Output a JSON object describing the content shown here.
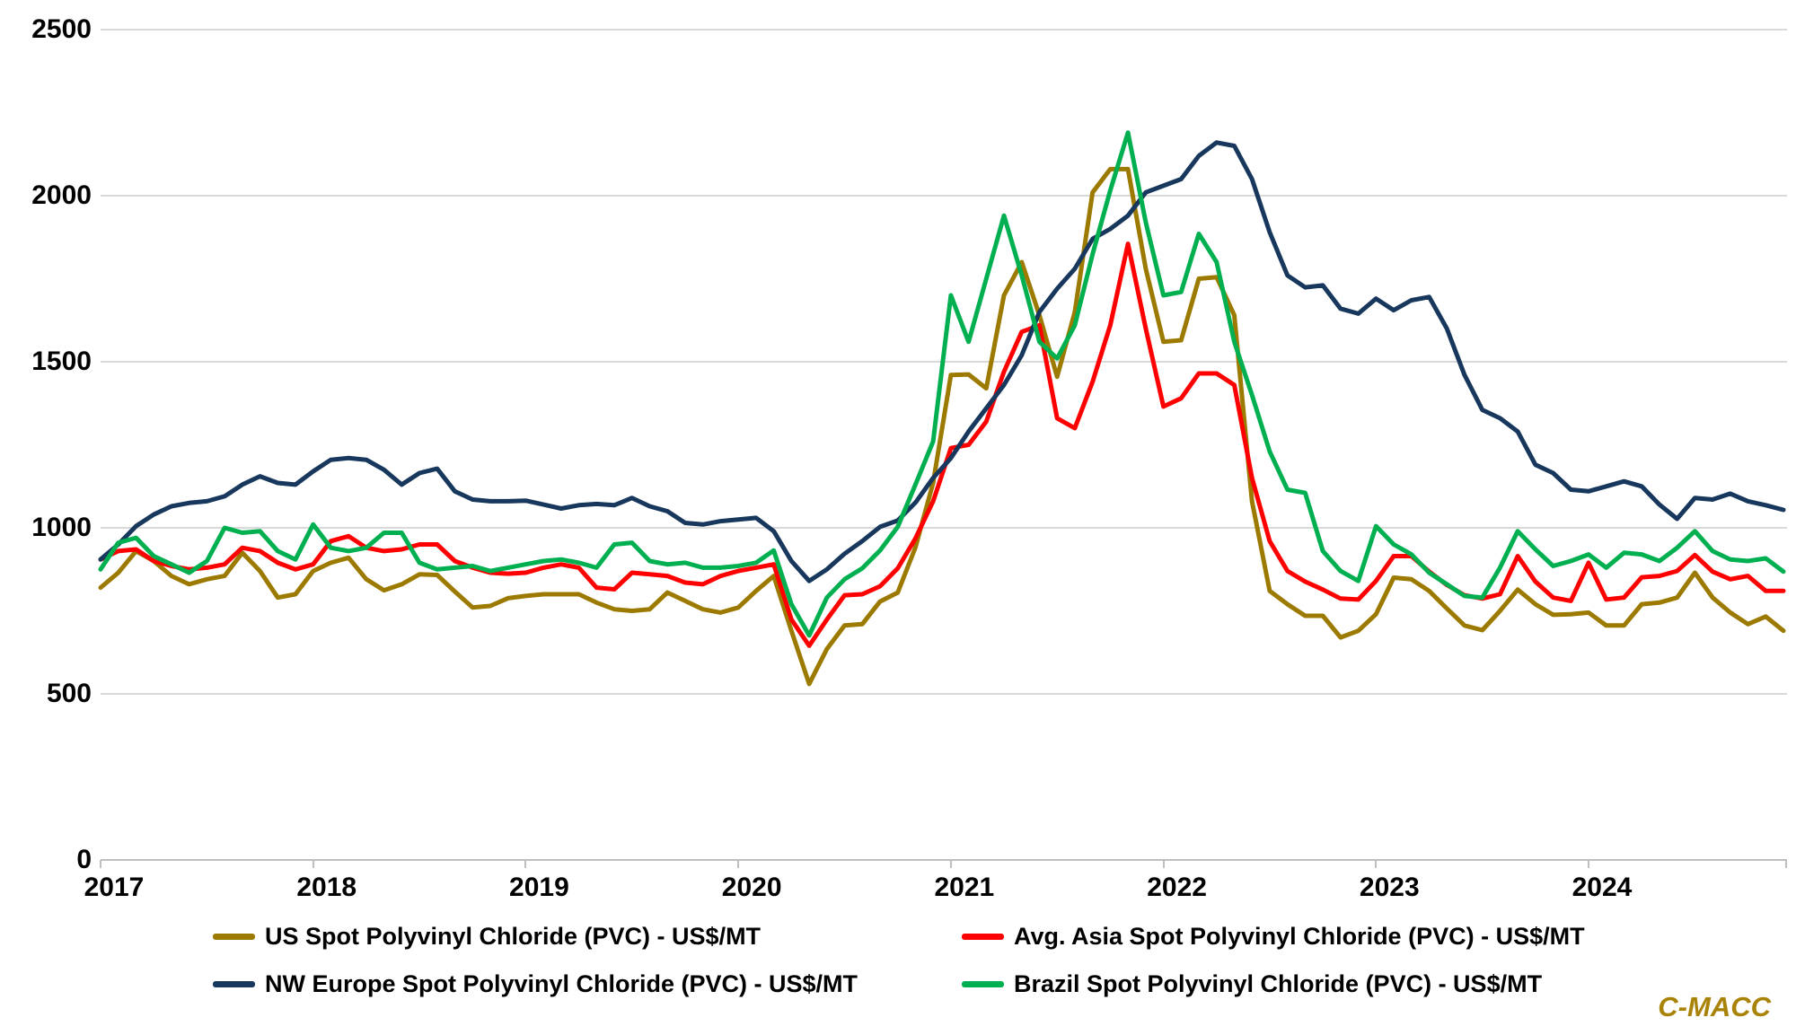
{
  "watermark": "C-MACC",
  "colors": {
    "grid": "#d9d9d9",
    "axis_line": "#bfbfbf",
    "label_text": "#000000",
    "watermark": "#a98307"
  },
  "chart_data": {
    "type": "line",
    "title": "",
    "grid": "horizontal",
    "legend_position": "bottom",
    "x_axis": {
      "labels": [
        "2017",
        "2018",
        "2019",
        "2020",
        "2021",
        "2022",
        "2023",
        "2024"
      ],
      "note": "monthly points Jan 2017 - Dec 2024"
    },
    "y_axis": {
      "ticks": [
        "0",
        "500",
        "1000",
        "1500",
        "2000",
        "2500"
      ],
      "tick_values": [
        0,
        500,
        1000,
        1500,
        2000,
        2500
      ],
      "min": 0,
      "max": 2500,
      "unit": "US$/MT"
    },
    "series": [
      {
        "name": "US Spot Polyvinyl Chloride (PVC) - US$/MT",
        "color": "#9C7A00",
        "values": [
          820,
          865,
          930,
          900,
          855,
          830,
          845,
          855,
          925,
          870,
          790,
          800,
          870,
          895,
          910,
          845,
          812,
          830,
          860,
          858,
          808,
          760,
          765,
          788,
          795,
          800,
          800,
          800,
          775,
          755,
          750,
          755,
          805,
          780,
          755,
          745,
          760,
          810,
          855,
          690,
          530,
          635,
          706,
          710,
          778,
          805,
          941,
          1135,
          1460,
          1462,
          1420,
          1700,
          1800,
          1640,
          1455,
          1650,
          2010,
          2080,
          2080,
          1780,
          1560,
          1565,
          1750,
          1755,
          1640,
          1080,
          810,
          770,
          735,
          735,
          670,
          690,
          740,
          850,
          845,
          810,
          757,
          706,
          692,
          750,
          814,
          770,
          738,
          740,
          745,
          706,
          706,
          770,
          775,
          790,
          865,
          790,
          745,
          710,
          733,
          690
        ]
      },
      {
        "name": "Avg. Asia Spot Polyvinyl Chloride (PVC) - US$/MT",
        "color": "#FF0000",
        "values": [
          905,
          930,
          935,
          900,
          885,
          875,
          880,
          890,
          940,
          930,
          895,
          875,
          890,
          960,
          975,
          940,
          930,
          935,
          950,
          950,
          900,
          880,
          865,
          862,
          865,
          880,
          890,
          880,
          820,
          815,
          865,
          860,
          855,
          835,
          830,
          855,
          870,
          880,
          890,
          724,
          645,
          724,
          797,
          800,
          824,
          878,
          968,
          1080,
          1240,
          1250,
          1320,
          1470,
          1590,
          1610,
          1330,
          1300,
          1440,
          1610,
          1855,
          1600,
          1365,
          1390,
          1465,
          1465,
          1430,
          1150,
          960,
          870,
          838,
          814,
          787,
          784,
          840,
          915,
          915,
          868,
          828,
          797,
          787,
          800,
          915,
          838,
          790,
          780,
          895,
          784,
          790,
          851,
          855,
          870,
          918,
          868,
          845,
          855,
          810,
          810
        ]
      },
      {
        "name": "NW Europe Spot Polyvinyl Chloride (PVC) - US$/MT",
        "color": "#17375D",
        "values": [
          905,
          950,
          1005,
          1040,
          1065,
          1075,
          1080,
          1095,
          1130,
          1155,
          1135,
          1130,
          1170,
          1205,
          1210,
          1205,
          1175,
          1130,
          1165,
          1178,
          1110,
          1085,
          1080,
          1080,
          1082,
          1070,
          1058,
          1068,
          1072,
          1068,
          1090,
          1065,
          1050,
          1015,
          1010,
          1020,
          1025,
          1030,
          990,
          900,
          840,
          875,
          922,
          960,
          1003,
          1022,
          1076,
          1150,
          1210,
          1290,
          1360,
          1430,
          1520,
          1650,
          1720,
          1780,
          1870,
          1900,
          1940,
          2010,
          2030,
          2050,
          2120,
          2160,
          2150,
          2050,
          1890,
          1760,
          1724,
          1730,
          1660,
          1645,
          1690,
          1655,
          1685,
          1695,
          1600,
          1460,
          1355,
          1330,
          1290,
          1190,
          1165,
          1115,
          1110,
          1125,
          1140,
          1125,
          1070,
          1027,
          1090,
          1085,
          1103,
          1080,
          1068,
          1054
        ]
      },
      {
        "name": "Brazil Spot Polyvinyl Chloride (PVC) - US$/MT",
        "color": "#00B050",
        "values": [
          875,
          955,
          970,
          915,
          890,
          865,
          900,
          1000,
          985,
          990,
          930,
          905,
          1010,
          940,
          930,
          940,
          985,
          985,
          895,
          875,
          880,
          885,
          870,
          880,
          890,
          900,
          905,
          895,
          880,
          950,
          955,
          900,
          890,
          895,
          880,
          880,
          885,
          895,
          932,
          770,
          676,
          790,
          845,
          878,
          932,
          1003,
          1130,
          1260,
          1700,
          1560,
          1750,
          1940,
          1760,
          1560,
          1510,
          1610,
          1824,
          2016,
          2190,
          1920,
          1700,
          1710,
          1885,
          1800,
          1560,
          1400,
          1230,
          1115,
          1105,
          930,
          870,
          840,
          1005,
          950,
          920,
          865,
          830,
          795,
          790,
          880,
          990,
          935,
          885,
          900,
          920,
          880,
          925,
          920,
          900,
          940,
          990,
          930,
          905,
          900,
          908,
          868
        ]
      }
    ]
  }
}
